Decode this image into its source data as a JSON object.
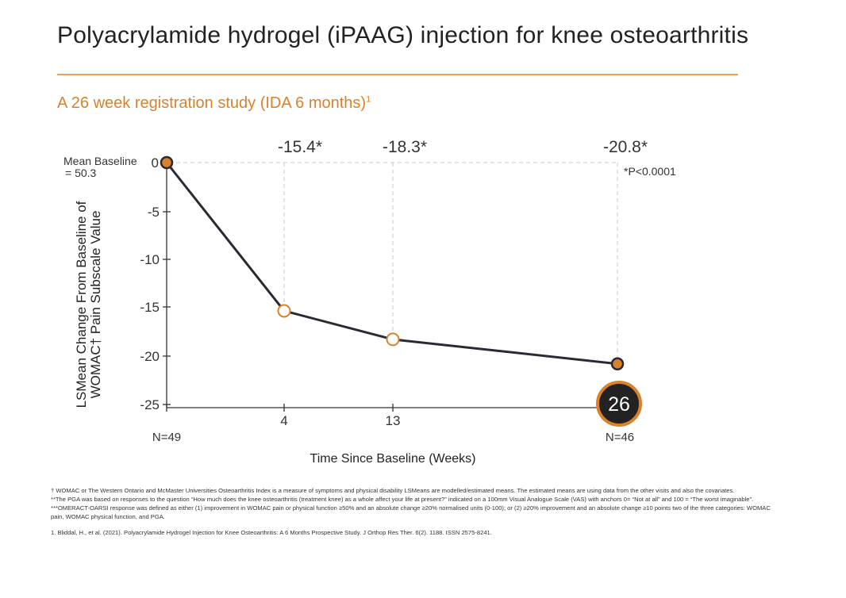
{
  "page": {
    "title": "Polyacrylamide hydrogel (iPAAG) injection for knee osteoarthritis",
    "subtitle": "A 26 week registration study (IDA 6 months)",
    "subtitle_sup": "1"
  },
  "chart_data": {
    "type": "line",
    "title": "",
    "xlabel": "Time Since Baseline (Weeks)",
    "ylabel_line1": "LSMean Change From Baseline of",
    "ylabel_line2": "WOMAC† Pain Subscale Value",
    "baseline_label_line1": "Mean Baseline",
    "baseline_label_line2": "= 50.3",
    "x_ticks": [
      "4",
      "13"
    ],
    "x_final_label": "26",
    "y_ticks": [
      0,
      -5,
      -10,
      -15,
      -20,
      -25
    ],
    "ylim": [
      -25,
      0
    ],
    "series": [
      {
        "name": "LSMean change",
        "x": [
          0,
          4,
          13,
          26
        ],
        "y": [
          0,
          -15.4,
          -18.3,
          -20.8
        ]
      }
    ],
    "value_labels": [
      "-15.4*",
      "-18.3*",
      "-20.8*"
    ],
    "significance_note": "*P<0.0001",
    "n_start": "N=49",
    "n_end": "N=46",
    "colors": {
      "line": "#2a2a35",
      "accent": "#d9822b",
      "grid": "#c8c8c8"
    }
  },
  "footnotes": {
    "womac": "† WOMAC or The Western Ontario and McMaster Universities Osteoarthritis Index is a measure of symptoms and physical disability LSMeans are modelled/estimated means. The estimated means are using data from the other visits and also the covariates.",
    "pga": "**The PGA was based on responses to the question “How much does the knee osteoarthritis (treatment knee) as a whole affect your life at present?” indicated on a 100mm Visual Analogue Scale (VAS) with anchors 0= “Not at all” and 100 = “The worst imaginable”.",
    "omeract": "***OMERACT-OARSI response was defined as either (1) improvement in WOMAC pain or physical function ≥50% and an absolute change ≥20% normalised units (0-100); or (2) ≥20% improvement and an absolute change ≥10 points two of the three categories: WOMAC pain, WOMAC physical function, and PGA.",
    "reference": "1.    Bliddal, H., et al. (2021). Polyacrylamide Hydrogel Injection for Knee Osteoarthritis: A 6 Months Prospective Study. J Orthop Res Ther. 6(2). 1188. ISSN 2575-8241."
  }
}
